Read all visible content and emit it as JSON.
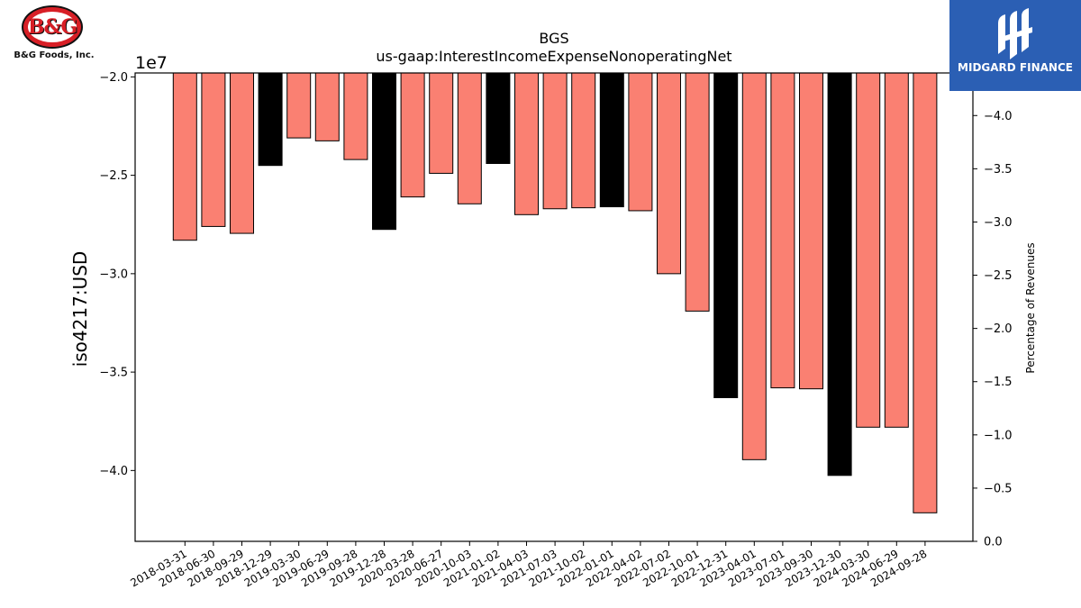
{
  "logos": {
    "company_mark": "B&G",
    "company_name": "B&G Foods, Inc.",
    "publisher_name": "MIDGARD FINANCE"
  },
  "colors": {
    "bar_default": "#fa8072",
    "bar_highlight": "#000000",
    "publisher_bg": "#2b5fb4"
  },
  "chart_data": {
    "type": "bar",
    "title": "BGS",
    "subtitle": "us-gaap:InterestIncomeExpenseNonoperatingNet",
    "ylabel": "iso4217:USD",
    "y_offset_label": "1e7",
    "y2label": "Percentage of Revenues",
    "ylim": [
      -43600000,
      -19800000
    ],
    "y2lim": [
      0.0,
      4.4
    ],
    "yticks": [
      -20000000,
      -25000000,
      -30000000,
      -35000000,
      -40000000
    ],
    "ytick_labels": [
      "−2.0",
      "−2.5",
      "−3.0",
      "−3.5",
      "−4.0"
    ],
    "y2ticks": [
      0.0,
      0.5,
      1.0,
      1.5,
      2.0,
      2.5,
      3.0,
      3.5,
      4.0
    ],
    "y2tick_labels": [
      "0.0",
      "−0.5",
      "−1.0",
      "−1.5",
      "−2.0",
      "−2.5",
      "−3.0",
      "−3.5",
      "−4.0"
    ],
    "grid": false,
    "categories": [
      "2018-03-31",
      "2018-06-30",
      "2018-09-29",
      "2018-12-29",
      "2019-03-30",
      "2019-06-29",
      "2019-09-28",
      "2019-12-28",
      "2020-03-28",
      "2020-06-27",
      "2020-10-03",
      "2021-01-02",
      "2021-04-03",
      "2021-07-03",
      "2021-10-02",
      "2022-01-01",
      "2022-04-02",
      "2022-07-02",
      "2022-10-01",
      "2022-12-31",
      "2023-04-01",
      "2023-07-01",
      "2023-09-30",
      "2023-12-30",
      "2024-03-30",
      "2024-06-29",
      "2024-09-28"
    ],
    "values": [
      -28300000,
      -27600000,
      -27950000,
      -24500000,
      -23100000,
      -23250000,
      -24200000,
      -27750000,
      -26100000,
      -24900000,
      -26450000,
      -24400000,
      -27000000,
      -26700000,
      -26650000,
      -26600000,
      -26800000,
      -30000000,
      -31900000,
      -36300000,
      -39450000,
      -35800000,
      -35850000,
      -40250000,
      -37800000,
      -37800000,
      -42150000
    ],
    "highlight": [
      false,
      false,
      false,
      true,
      false,
      false,
      false,
      true,
      false,
      false,
      false,
      true,
      false,
      false,
      false,
      true,
      false,
      false,
      false,
      true,
      false,
      false,
      false,
      true,
      false,
      false,
      false
    ]
  }
}
